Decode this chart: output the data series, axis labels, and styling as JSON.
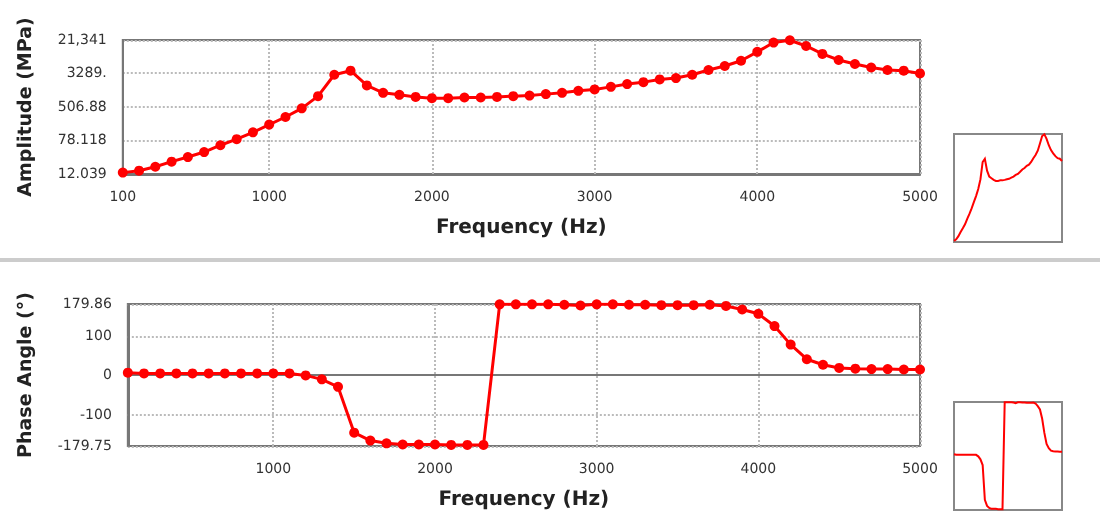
{
  "chart_data": [
    {
      "type": "line",
      "xlabel": "Frequency (Hz)",
      "ylabel": "Amplitude (MPa)",
      "log": "y",
      "grid": true,
      "marker": "circle",
      "line_style": "solid",
      "x": [
        100,
        200,
        300,
        400,
        500,
        600,
        700,
        800,
        900,
        1000,
        1100,
        1200,
        1300,
        1400,
        1500,
        1600,
        1700,
        1800,
        1900,
        2000,
        2100,
        2200,
        2300,
        2400,
        2500,
        2600,
        2700,
        2800,
        2900,
        3000,
        3100,
        3200,
        3300,
        3400,
        3500,
        3600,
        3700,
        3800,
        3900,
        4000,
        4100,
        4200,
        4300,
        4400,
        4500,
        4600,
        4700,
        4800,
        4900,
        5000
      ],
      "series": [
        {
          "color": "#ff0000",
          "values": [
            13,
            14.5,
            18,
            24,
            31,
            41,
            60,
            84,
            123,
            190,
            290,
            470,
            930,
            3070,
            3850,
            1690,
            1120,
            1000,
            890,
            830,
            830,
            860,
            860,
            890,
            930,
            960,
            1040,
            1120,
            1250,
            1350,
            1560,
            1820,
            2030,
            2360,
            2550,
            3070,
            3990,
            4990,
            6700,
            11000,
            18500,
            21000,
            15300,
            9800,
            7000,
            5600,
            4600,
            4000,
            3850,
            3300
          ]
        }
      ],
      "xlim": [
        100,
        5000
      ],
      "xticks": [
        100,
        1000,
        2000,
        3000,
        4000,
        5000
      ],
      "ylim": [
        12.039,
        21341
      ],
      "yticks": [
        12.039,
        78.118,
        506.88,
        {
          "value": 3289,
          "label": "3289."
        },
        {
          "value": 21341,
          "label": "21,341"
        }
      ]
    },
    {
      "type": "line",
      "xlabel": "Frequency (Hz)",
      "ylabel": "Phase Angle (°)",
      "grid": true,
      "marker": "circle",
      "line_style": "solid",
      "x": [
        100,
        200,
        300,
        400,
        500,
        600,
        700,
        800,
        900,
        1000,
        1100,
        1200,
        1300,
        1400,
        1500,
        1600,
        1700,
        1800,
        1900,
        2000,
        2100,
        2200,
        2300,
        2400,
        2500,
        2600,
        2700,
        2800,
        2900,
        3000,
        3100,
        3200,
        3300,
        3400,
        3500,
        3600,
        3700,
        3800,
        3900,
        4000,
        4100,
        4200,
        4300,
        4400,
        4500,
        4600,
        4700,
        4800,
        4900,
        5000
      ],
      "series": [
        {
          "color": "#ff0000",
          "values": [
            6,
            4,
            4,
            4,
            4,
            4,
            4,
            4,
            4,
            4,
            4,
            -1,
            -11,
            -30,
            -146,
            -166,
            -173,
            -176,
            -176,
            -176,
            -177,
            -177,
            -177,
            179,
            179,
            179,
            179,
            178,
            176,
            179,
            179,
            178,
            178,
            177,
            177,
            177,
            178,
            175,
            166,
            155,
            124,
            77,
            40,
            26,
            18,
            16,
            15,
            15,
            14,
            14
          ]
        }
      ],
      "xlim": [
        100,
        5000
      ],
      "xticks": [
        1000,
        2000,
        3000,
        4000,
        5000
      ],
      "ylim": [
        -179.75,
        179.86
      ],
      "yticks": [
        -179.75,
        -100,
        0,
        100,
        179.86
      ]
    }
  ]
}
